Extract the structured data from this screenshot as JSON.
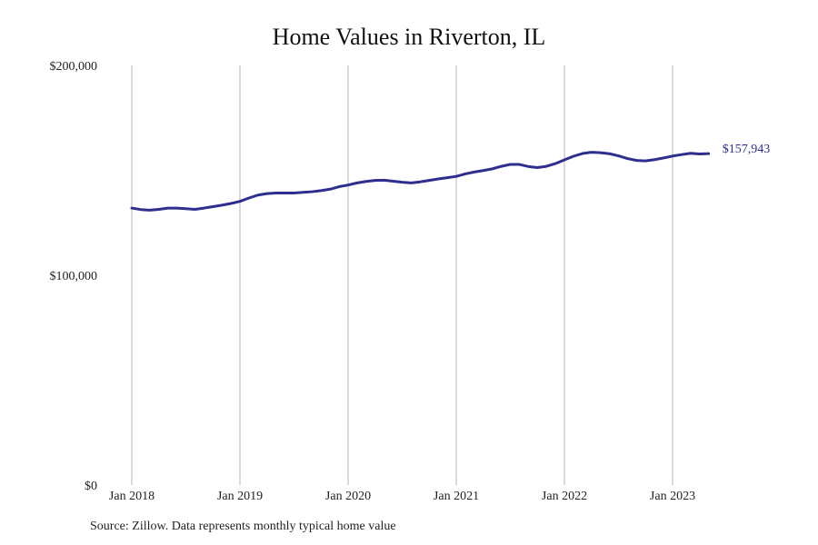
{
  "chart_data": {
    "type": "line",
    "title": "Home Values in Riverton, IL",
    "source": "Source: Zillow. Data represents monthly typical home value",
    "ylim": [
      0,
      200000
    ],
    "y_ticks": [
      {
        "value": 0,
        "label": "$0"
      },
      {
        "value": 100000,
        "label": "$100,000"
      },
      {
        "value": 200000,
        "label": "$200,000"
      }
    ],
    "x_ticks": [
      "Jan 2018",
      "Jan 2019",
      "Jan 2020",
      "Jan 2021",
      "Jan 2022",
      "Jan 2023"
    ],
    "x_range": [
      "2018-01",
      "2023-05"
    ],
    "grid": "vertical lines at x ticks",
    "series": [
      {
        "color": "#2e2e8f",
        "end_label": "$157,943",
        "points": [
          [
            "2018-01",
            132000
          ],
          [
            "2018-02",
            131300
          ],
          [
            "2018-03",
            131000
          ],
          [
            "2018-04",
            131400
          ],
          [
            "2018-05",
            132000
          ],
          [
            "2018-06",
            132000
          ],
          [
            "2018-07",
            131700
          ],
          [
            "2018-08",
            131400
          ],
          [
            "2018-09",
            132000
          ],
          [
            "2018-10",
            132700
          ],
          [
            "2018-11",
            133400
          ],
          [
            "2018-12",
            134200
          ],
          [
            "2019-01",
            135200
          ],
          [
            "2019-02",
            136800
          ],
          [
            "2019-03",
            138200
          ],
          [
            "2019-04",
            138900
          ],
          [
            "2019-05",
            139200
          ],
          [
            "2019-06",
            139200
          ],
          [
            "2019-07",
            139200
          ],
          [
            "2019-08",
            139500
          ],
          [
            "2019-09",
            139800
          ],
          [
            "2019-10",
            140300
          ],
          [
            "2019-11",
            141000
          ],
          [
            "2019-12",
            142200
          ],
          [
            "2020-01",
            143000
          ],
          [
            "2020-02",
            144000
          ],
          [
            "2020-03",
            144700
          ],
          [
            "2020-04",
            145200
          ],
          [
            "2020-05",
            145300
          ],
          [
            "2020-06",
            144800
          ],
          [
            "2020-07",
            144300
          ],
          [
            "2020-08",
            144000
          ],
          [
            "2020-09",
            144500
          ],
          [
            "2020-10",
            145200
          ],
          [
            "2020-11",
            145900
          ],
          [
            "2020-12",
            146500
          ],
          [
            "2021-01",
            147100
          ],
          [
            "2021-02",
            148300
          ],
          [
            "2021-03",
            149200
          ],
          [
            "2021-04",
            149900
          ],
          [
            "2021-05",
            150700
          ],
          [
            "2021-06",
            151900
          ],
          [
            "2021-07",
            152800
          ],
          [
            "2021-08",
            152800
          ],
          [
            "2021-09",
            151800
          ],
          [
            "2021-10",
            151300
          ],
          [
            "2021-11",
            151900
          ],
          [
            "2021-12",
            153200
          ],
          [
            "2022-01",
            155000
          ],
          [
            "2022-02",
            156700
          ],
          [
            "2022-03",
            158000
          ],
          [
            "2022-04",
            158600
          ],
          [
            "2022-05",
            158400
          ],
          [
            "2022-06",
            157900
          ],
          [
            "2022-07",
            156900
          ],
          [
            "2022-08",
            155600
          ],
          [
            "2022-09",
            154700
          ],
          [
            "2022-10",
            154500
          ],
          [
            "2022-11",
            155100
          ],
          [
            "2022-12",
            155900
          ],
          [
            "2023-01",
            156800
          ],
          [
            "2023-02",
            157500
          ],
          [
            "2023-03",
            158100
          ],
          [
            "2023-04",
            157800
          ],
          [
            "2023-05",
            157943
          ]
        ]
      }
    ]
  }
}
